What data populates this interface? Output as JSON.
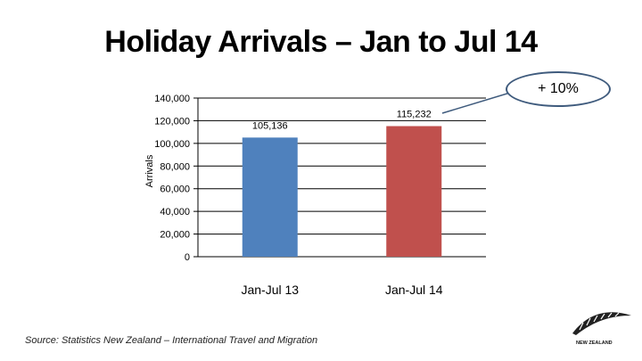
{
  "slide": {
    "title": "Holiday Arrivals – Jan to Jul 14",
    "callout": "+ 10%",
    "source": "Source: Statistics New Zealand – International Travel and Migration",
    "logo_text": "NEW ZEALAND"
  },
  "chart_data": {
    "type": "bar",
    "title": "",
    "xlabel": "",
    "ylabel": "Arrivals",
    "categories": [
      "Jan-Jul 13",
      "Jan-Jul 14"
    ],
    "values": [
      105136,
      115232
    ],
    "data_labels": [
      "105,136",
      "115,232"
    ],
    "colors": [
      "#4f81bd",
      "#c0504d"
    ],
    "ylim": [
      0,
      140000
    ],
    "yticks": [
      0,
      20000,
      40000,
      60000,
      80000,
      100000,
      120000,
      140000
    ],
    "ytick_labels": [
      "0",
      "20,000",
      "40,000",
      "60,000",
      "80,000",
      "100,000",
      "120,000",
      "140,000"
    ],
    "grid": true,
    "legend": "none"
  }
}
